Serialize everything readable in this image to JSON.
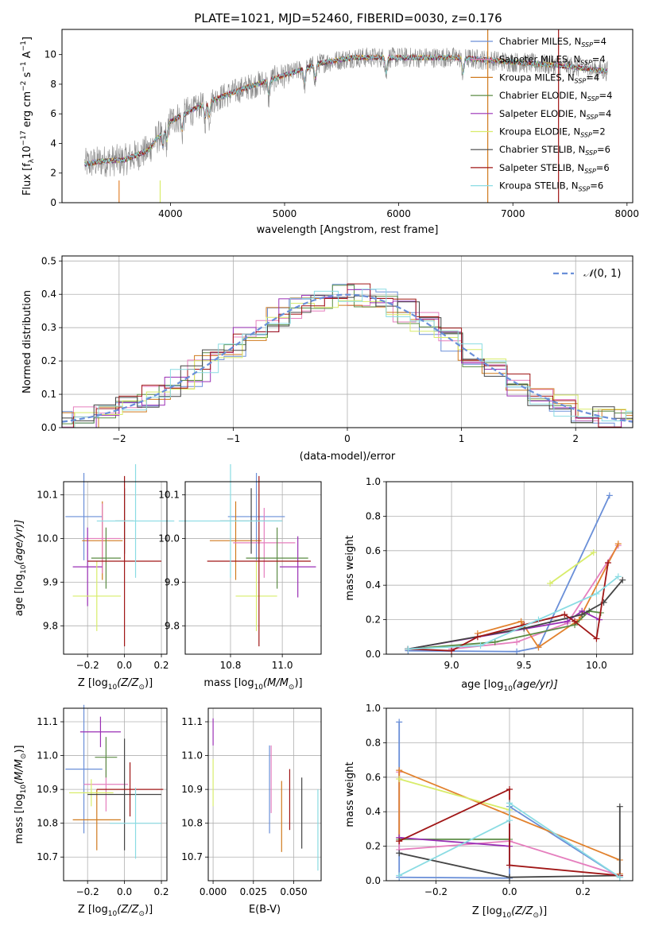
{
  "title": "PLATE=1021, MJD=52460, FIBERID=0030, z=0.176",
  "colors": {
    "cornflower": "#6A8FD8",
    "orange": "#E2822E",
    "darkorange": "#D07A1E",
    "green": "#5B8C45",
    "purple": "#9A2FB5",
    "yellowgreen": "#D8EC6A",
    "darkgray": "#444444",
    "darkred": "#A01616",
    "lightcyan": "#8ADCE3",
    "pink": "#E57FBE",
    "gray": "#888888"
  },
  "chart_data": [
    {
      "id": "spectrum",
      "type": "line",
      "xlabel": "wavelength [Angstrom, rest frame]",
      "ylabel": "Flux [f",
      "xlim": [
        3050,
        8050
      ],
      "ylim": [
        0,
        11.7
      ],
      "xticks": [
        "4000",
        "5000",
        "6000",
        "7000",
        "8000"
      ],
      "yticks": [
        "0",
        "2",
        "4",
        "6",
        "8",
        "10"
      ],
      "grid": false,
      "legend_position": "top-right",
      "series": [
        {
          "name": "Chabrier MILES, N",
          "sup": "SSP",
          "suffix": "=4",
          "color": "#6A8FD8"
        },
        {
          "name": "Salpeter MILES, N",
          "sup": "SSP",
          "suffix": "=4",
          "color": "#E57FBE"
        },
        {
          "name": "Kroupa MILES, N",
          "sup": "SSP",
          "suffix": "=4",
          "color": "#D07A1E"
        },
        {
          "name": "Chabrier ELODIE, N",
          "sup": "SSP",
          "suffix": "=4",
          "color": "#5B8C45"
        },
        {
          "name": "Salpeter ELODIE, N",
          "sup": "SSP",
          "suffix": "=4",
          "color": "#9A2FB5"
        },
        {
          "name": "Kroupa ELODIE, N",
          "sup": "SSP",
          "suffix": "=2",
          "color": "#D8EC6A"
        },
        {
          "name": "Chabrier STELIB, N",
          "sup": "SSP",
          "suffix": "=6",
          "color": "#444444"
        },
        {
          "name": "Salpeter STELIB, N",
          "sup": "SSP",
          "suffix": "=6",
          "color": "#A01616"
        },
        {
          "name": "Kroupa STELIB, N",
          "sup": "SSP",
          "suffix": "=6",
          "color": "#8ADCE3"
        }
      ],
      "continuum": {
        "x": [
          3250,
          3400,
          3600,
          3800,
          4000,
          4300,
          4600,
          5000,
          5300,
          5600,
          6000,
          6500,
          7000,
          7500,
          7800
        ],
        "y": [
          2.6,
          2.8,
          2.9,
          3.5,
          5.5,
          6.7,
          7.6,
          8.6,
          9.4,
          9.8,
          9.8,
          9.8,
          9.5,
          9.2,
          8.9
        ]
      }
    },
    {
      "id": "residuals",
      "type": "line",
      "xlabel": "(data-model)/error",
      "ylabel": "Normed distribution",
      "xlim": [
        -2.5,
        2.5
      ],
      "ylim": [
        0,
        0.515
      ],
      "xticks": [
        "−2",
        "−1",
        "0",
        "1",
        "2"
      ],
      "yticks": [
        "0.0",
        "0.1",
        "0.2",
        "0.3",
        "0.4",
        "0.5"
      ],
      "grid": true,
      "legend_position": "top-right",
      "legend_label": "(0, 1)",
      "legend_symbol": "𝒩",
      "gaussian": {
        "mean": 0,
        "sigma": 1,
        "color": "#6A8FD8"
      }
    },
    {
      "id": "age-vs-z",
      "type": "scatter",
      "xlabel": "Z [log",
      "ylabel": "age",
      "xlim": [
        -0.33,
        0.23
      ],
      "ylim": [
        9.735,
        10.13
      ],
      "xticks": [
        "−0.2",
        "0.0",
        "0.2"
      ],
      "yticks": [
        "9.8",
        "9.9",
        "10.0",
        "10.1"
      ],
      "grid": true,
      "points": [
        {
          "x": -0.22,
          "xerr": 0.1,
          "y": 10.05,
          "yerr": 0.1,
          "color": "#6A8FD8"
        },
        {
          "x": -0.12,
          "xerr": 0.11,
          "y": 9.995,
          "yerr": 0.09,
          "color": "#D07A1E"
        },
        {
          "x": -0.12,
          "xerr": 0.1,
          "y": 10.0,
          "yerr": 0.08,
          "color": "#E57FBE"
        },
        {
          "x": -0.1,
          "xerr": 0.08,
          "y": 9.955,
          "yerr": 0.07,
          "color": "#5B8C45"
        },
        {
          "x": -0.2,
          "xerr": 0.08,
          "y": 9.935,
          "yerr": 0.09,
          "color": "#9A2FB5"
        },
        {
          "x": -0.15,
          "xerr": 0.13,
          "y": 9.868,
          "yerr": 0.08,
          "color": "#D8EC6A"
        },
        {
          "x": 0.0,
          "xerr": 0.05,
          "y": 10.04,
          "yerr": 0.075,
          "color": "#444444"
        },
        {
          "x": 0.0,
          "xerr": 0.2,
          "y": 9.948,
          "yerr": 0.195,
          "color": "#A01616"
        },
        {
          "x": 0.06,
          "xerr": 0.21,
          "y": 10.04,
          "yerr": 0.13,
          "color": "#8ADCE3"
        }
      ]
    },
    {
      "id": "age-vs-mass",
      "type": "scatter",
      "xlabel": "mass [log",
      "ylabel": "",
      "xlim": [
        10.625,
        11.15
      ],
      "ylim": [
        9.735,
        10.13
      ],
      "xticks": [
        "10.8",
        "11.0"
      ],
      "yticks": [
        "9.8",
        "9.9",
        "10.0",
        "10.1"
      ],
      "grid": true,
      "points": [
        {
          "x": 10.9,
          "xerr": 0.11,
          "y": 10.05,
          "yerr": 0.1,
          "color": "#6A8FD8"
        },
        {
          "x": 10.82,
          "xerr": 0.1,
          "y": 9.995,
          "yerr": 0.09,
          "color": "#D07A1E"
        },
        {
          "x": 10.93,
          "xerr": 0.12,
          "y": 9.99,
          "yerr": 0.08,
          "color": "#E57FBE"
        },
        {
          "x": 10.98,
          "xerr": 0.12,
          "y": 9.955,
          "yerr": 0.07,
          "color": "#5B8C45"
        },
        {
          "x": 11.06,
          "xerr": 0.07,
          "y": 9.935,
          "yerr": 0.07,
          "color": "#9A2FB5"
        },
        {
          "x": 10.9,
          "xerr": 0.08,
          "y": 9.868,
          "yerr": 0.08,
          "color": "#D8EC6A"
        },
        {
          "x": 10.88,
          "xerr": 0.12,
          "y": 10.04,
          "yerr": 0.075,
          "color": "#444444"
        },
        {
          "x": 10.91,
          "xerr": 0.2,
          "y": 9.948,
          "yerr": 0.195,
          "color": "#A01616"
        },
        {
          "x": 10.8,
          "xerr": 0.2,
          "y": 10.04,
          "yerr": 0.13,
          "color": "#8ADCE3"
        }
      ]
    },
    {
      "id": "mass-weight-vs-age",
      "type": "line",
      "xlabel": "age",
      "ylabel": "mass weight",
      "xlim": [
        8.55,
        10.25
      ],
      "ylim": [
        0,
        1.0
      ],
      "xticks": [
        "9.0",
        "9.5",
        "10.0"
      ],
      "yticks": [
        "0.0",
        "0.2",
        "0.4",
        "0.6",
        "0.8",
        "1.0"
      ],
      "grid": true,
      "series": [
        {
          "color": "#6A8FD8",
          "x": [
            8.7,
            9.45,
            9.6,
            10.09
          ],
          "y": [
            0.02,
            0.015,
            0.04,
            0.92
          ]
        },
        {
          "color": "#E57FBE",
          "x": [
            9.0,
            9.45,
            9.8,
            10.15
          ],
          "y": [
            0.03,
            0.07,
            0.18,
            0.63
          ]
        },
        {
          "color": "#E2822E",
          "x": [
            9.18,
            9.48,
            9.6,
            9.88,
            10.15
          ],
          "y": [
            0.12,
            0.19,
            0.04,
            0.2,
            0.64
          ]
        },
        {
          "color": "#5B8C45",
          "x": [
            8.7,
            9.3,
            9.85,
            9.95,
            10.03
          ],
          "y": [
            0.03,
            0.07,
            0.17,
            0.25,
            0.24
          ]
        },
        {
          "color": "#9A2FB5",
          "x": [
            8.7,
            9.8,
            9.9,
            10.02
          ],
          "y": [
            0.03,
            0.19,
            0.25,
            0.2
          ]
        },
        {
          "color": "#D8EC6A",
          "x": [
            9.68,
            9.98
          ],
          "y": [
            0.41,
            0.59
          ]
        },
        {
          "color": "#444444",
          "x": [
            8.7,
            9.5,
            9.9,
            10.05,
            10.18
          ],
          "y": [
            0.03,
            0.15,
            0.23,
            0.3,
            0.43
          ]
        },
        {
          "color": "#A01616",
          "x": [
            8.7,
            9.0,
            9.18,
            9.5,
            9.78,
            9.85,
            10.0,
            10.08
          ],
          "y": [
            0.03,
            0.02,
            0.1,
            0.17,
            0.23,
            0.19,
            0.09,
            0.53
          ]
        },
        {
          "color": "#8ADCE3",
          "x": [
            8.7,
            9.2,
            9.6,
            10.0,
            10.15
          ],
          "y": [
            0.03,
            0.05,
            0.2,
            0.35,
            0.45
          ]
        }
      ]
    },
    {
      "id": "mass-vs-z",
      "type": "scatter",
      "xlabel": "Z [log",
      "ylabel": "mass",
      "xlim": [
        -0.33,
        0.23
      ],
      "ylim": [
        10.63,
        11.14
      ],
      "xticks": [
        "−0.2",
        "0.0",
        "0.2"
      ],
      "yticks": [
        "10.7",
        "10.8",
        "10.9",
        "11.0",
        "11.1"
      ],
      "grid": true,
      "points": [
        {
          "x": -0.22,
          "xerr": 0.1,
          "y": 10.96,
          "yerr": 0.19,
          "color": "#6A8FD8"
        },
        {
          "x": -0.15,
          "xerr": 0.13,
          "y": 10.81,
          "yerr": 0.09,
          "color": "#D07A1E"
        },
        {
          "x": -0.1,
          "xerr": 0.12,
          "y": 10.915,
          "yerr": 0.08,
          "color": "#E57FBE"
        },
        {
          "x": -0.1,
          "xerr": 0.06,
          "y": 10.995,
          "yerr": 0.06,
          "color": "#5B8C45"
        },
        {
          "x": -0.13,
          "xerr": 0.11,
          "y": 11.07,
          "yerr": 0.045,
          "color": "#9A2FB5"
        },
        {
          "x": -0.18,
          "xerr": 0.12,
          "y": 10.89,
          "yerr": 0.04,
          "color": "#D8EC6A"
        },
        {
          "x": 0.0,
          "xerr": 0.2,
          "y": 10.885,
          "yerr": 0.165,
          "color": "#444444"
        },
        {
          "x": 0.03,
          "xerr": 0.18,
          "y": 10.9,
          "yerr": 0.08,
          "color": "#A01616"
        },
        {
          "x": 0.06,
          "xerr": 0.14,
          "y": 10.8,
          "yerr": 0.105,
          "color": "#8ADCE3"
        }
      ]
    },
    {
      "id": "mass-vs-ebv",
      "type": "scatter",
      "xlabel": "E(B-V)",
      "ylabel": "",
      "xlim": [
        -0.003,
        0.067
      ],
      "ylim": [
        10.63,
        11.14
      ],
      "xticks": [
        "0.000",
        "0.025",
        "0.050"
      ],
      "yticks": [
        "10.7",
        "10.8",
        "10.9",
        "11.0",
        "11.1"
      ],
      "grid": true,
      "points": [
        {
          "x": 0.0,
          "xerr": 0,
          "y": 11.07,
          "yerr": 0.04,
          "color": "#9A2FB5"
        },
        {
          "x": 0.0,
          "xerr": 0,
          "y": 10.92,
          "yerr": 0.07,
          "color": "#D8EC6A"
        },
        {
          "x": 0.035,
          "xerr": 0,
          "y": 10.9,
          "yerr": 0.13,
          "color": "#6A8FD8"
        },
        {
          "x": 0.036,
          "xerr": 0,
          "y": 10.93,
          "yerr": 0.1,
          "color": "#E57FBE"
        },
        {
          "x": 0.0425,
          "xerr": 0,
          "y": 10.82,
          "yerr": 0.105,
          "color": "#D07A1E"
        },
        {
          "x": 0.0475,
          "xerr": 0,
          "y": 10.87,
          "yerr": 0.09,
          "color": "#A01616"
        },
        {
          "x": 0.055,
          "xerr": 0,
          "y": 10.83,
          "yerr": 0.105,
          "color": "#444444"
        },
        {
          "x": 0.065,
          "xerr": 0,
          "y": 10.78,
          "yerr": 0.12,
          "color": "#8ADCE3"
        }
      ]
    },
    {
      "id": "mass-weight-vs-z",
      "type": "line",
      "xlabel": "Z [log",
      "ylabel": "mass weight",
      "xlim": [
        -0.335,
        0.335
      ],
      "ylim": [
        0,
        1.0
      ],
      "xticks": [
        "−0.2",
        "0.0",
        "0.2"
      ],
      "yticks": [
        "0.0",
        "0.2",
        "0.4",
        "0.6",
        "0.8",
        "1.0"
      ],
      "grid": true,
      "series": [
        {
          "color": "#6A8FD8",
          "x": [
            -0.3,
            -0.3,
            0.0,
            0.0,
            0.3
          ],
          "y": [
            0.92,
            0.02,
            0.015,
            0.43,
            0.02
          ]
        },
        {
          "color": "#E57FBE",
          "x": [
            -0.3,
            -0.3,
            0.0,
            0.3
          ],
          "y": [
            0.63,
            0.18,
            0.23,
            0.03
          ]
        },
        {
          "color": "#E2822E",
          "x": [
            -0.3,
            -0.3,
            0.3,
            0.3
          ],
          "y": [
            0.23,
            0.64,
            0.12,
            0.04
          ]
        },
        {
          "color": "#5B8C45",
          "x": [
            -0.3,
            0.0
          ],
          "y": [
            0.24,
            0.24
          ]
        },
        {
          "color": "#9A2FB5",
          "x": [
            -0.3,
            0.0
          ],
          "y": [
            0.25,
            0.2
          ]
        },
        {
          "color": "#D8EC6A",
          "x": [
            -0.3,
            0.0
          ],
          "y": [
            0.59,
            0.41
          ]
        },
        {
          "color": "#444444",
          "x": [
            -0.3,
            0.0,
            0.3,
            0.3
          ],
          "y": [
            0.16,
            0.02,
            0.03,
            0.43
          ]
        },
        {
          "color": "#A01616",
          "x": [
            -0.3,
            0.0,
            0.0,
            0.3
          ],
          "y": [
            0.23,
            0.53,
            0.09,
            0.03
          ]
        },
        {
          "color": "#8ADCE3",
          "x": [
            -0.3,
            0.0,
            0.0,
            0.3
          ],
          "y": [
            0.03,
            0.35,
            0.45,
            0.02
          ]
        }
      ]
    }
  ],
  "labels": {
    "age_unit_lhs": "age  [log",
    "age_unit_sub": "10",
    "age_unit_rhs": "(age/yr)]",
    "z_unit": "Z [log",
    "z_sub": "10",
    "z_rhs": "(Z/Z",
    "z_sun": "⊙",
    "z_end": ")]",
    "mass_unit": "mass [log",
    "mass_sub": "10",
    "mass_rhs": "(M/M",
    "mass_sun": "⊙",
    "mass_end": ")]",
    "flux_a": "Flux [f",
    "flux_lambda": "λ",
    "flux_b": "10",
    "flux_exp": "−17",
    "flux_c": " erg cm",
    "flux_exp2": "−2",
    "flux_d": " s",
    "flux_exp3": "−1",
    "flux_e": " A",
    "flux_exp4": "−1",
    "flux_f": "]"
  }
}
